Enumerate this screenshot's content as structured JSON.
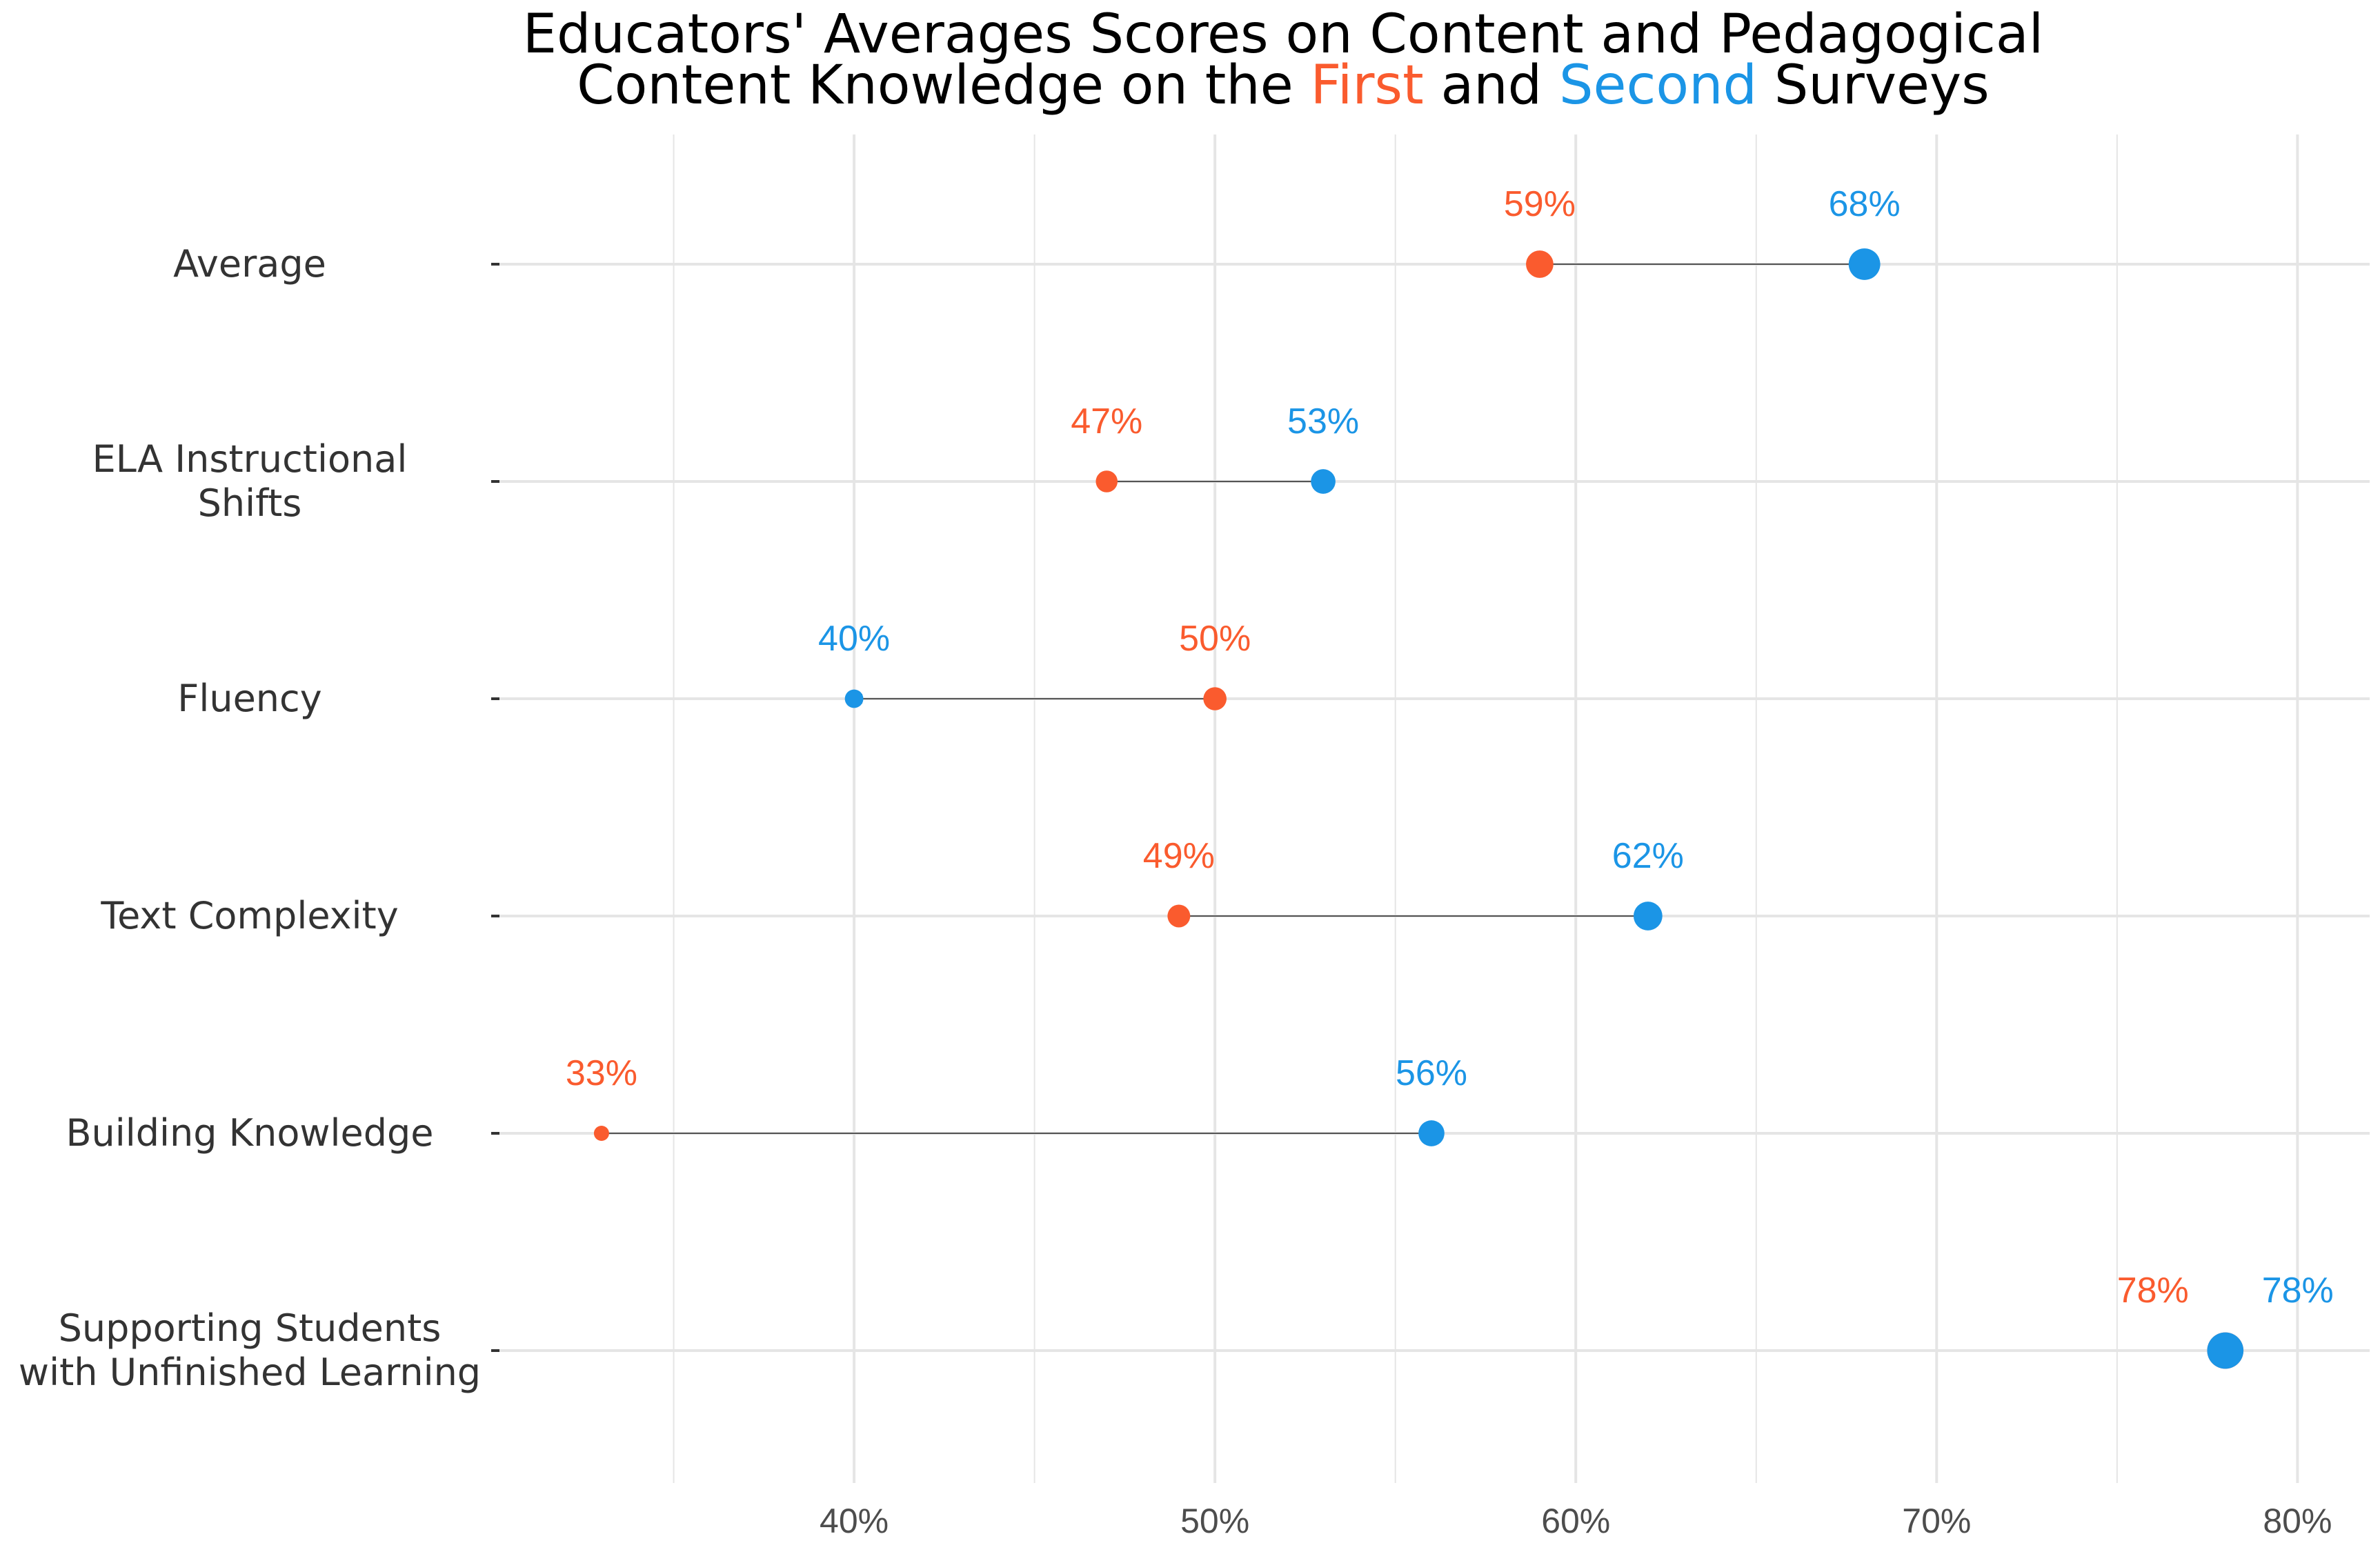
{
  "chart_data": {
    "type": "dumbbell",
    "title_line1": "Educators' Averages Scores on Content and Pedagogical",
    "title_line2": {
      "prefix": "Content Knowledge on the ",
      "first": "First",
      "middle": " and ",
      "second": "Second",
      "suffix": " Surveys"
    },
    "colors": {
      "first": "#FA5B2E",
      "second": "#1B95E6",
      "arrow": "#555555",
      "grid": "#e5e5e5"
    },
    "x_range": [
      30,
      82
    ],
    "x_ticks": [
      40,
      50,
      60,
      70,
      80
    ],
    "x_tick_labels": [
      "40%",
      "50%",
      "60%",
      "70%",
      "80%"
    ],
    "grid": true,
    "categories": [
      {
        "label": [
          "Average"
        ],
        "first": 59,
        "second": 68,
        "first_label": "59%",
        "second_label": "68%"
      },
      {
        "label": [
          "ELA Instructional",
          "Shifts"
        ],
        "first": 47,
        "second": 53,
        "first_label": "47%",
        "second_label": "53%"
      },
      {
        "label": [
          "Fluency"
        ],
        "first": 50,
        "second": 40,
        "first_label": "50%",
        "second_label": "40%"
      },
      {
        "label": [
          "Text Complexity"
        ],
        "first": 49,
        "second": 62,
        "first_label": "49%",
        "second_label": "62%"
      },
      {
        "label": [
          "Building Knowledge"
        ],
        "first": 33,
        "second": 56,
        "first_label": "33%",
        "second_label": "56%"
      },
      {
        "label": [
          "Supporting Students",
          "with Unfinished Learning"
        ],
        "first": 78,
        "second": 78,
        "first_label": "78%",
        "second_label": "78%"
      }
    ]
  }
}
